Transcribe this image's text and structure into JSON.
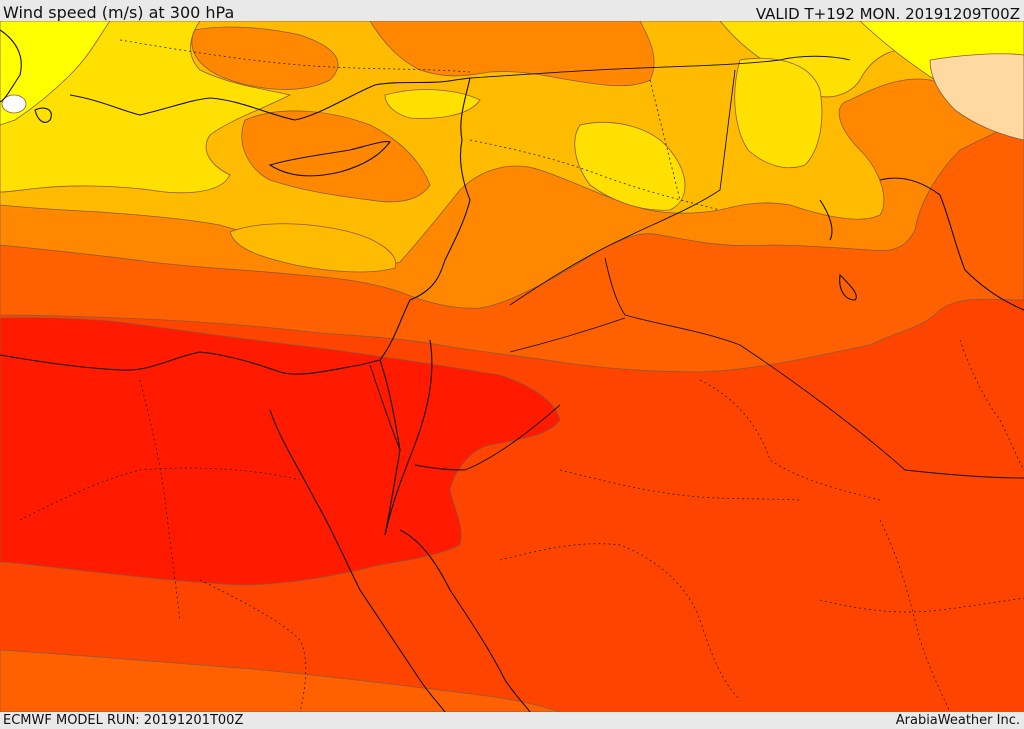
{
  "header": {
    "title": "Wind speed (m/s) at 300 hPa",
    "valid_time": "VALID T+192 MON. 20191209T00Z"
  },
  "footer": {
    "model_run": "ECMWF MODEL RUN: 20191201T00Z",
    "credit": "ArabiaWeather Inc."
  },
  "map": {
    "field": "wind speed 300 hPa",
    "colors": {
      "bright_yellow": "#ffff00",
      "yellow": "#ffe000",
      "light_orange": "#ffbb00",
      "orange": "#ff8800",
      "dark_orange": "#ff6000",
      "red_orange": "#ff4400",
      "red": "#ff1a00",
      "peach": "#ffd9a0",
      "white": "#ffffff"
    }
  }
}
